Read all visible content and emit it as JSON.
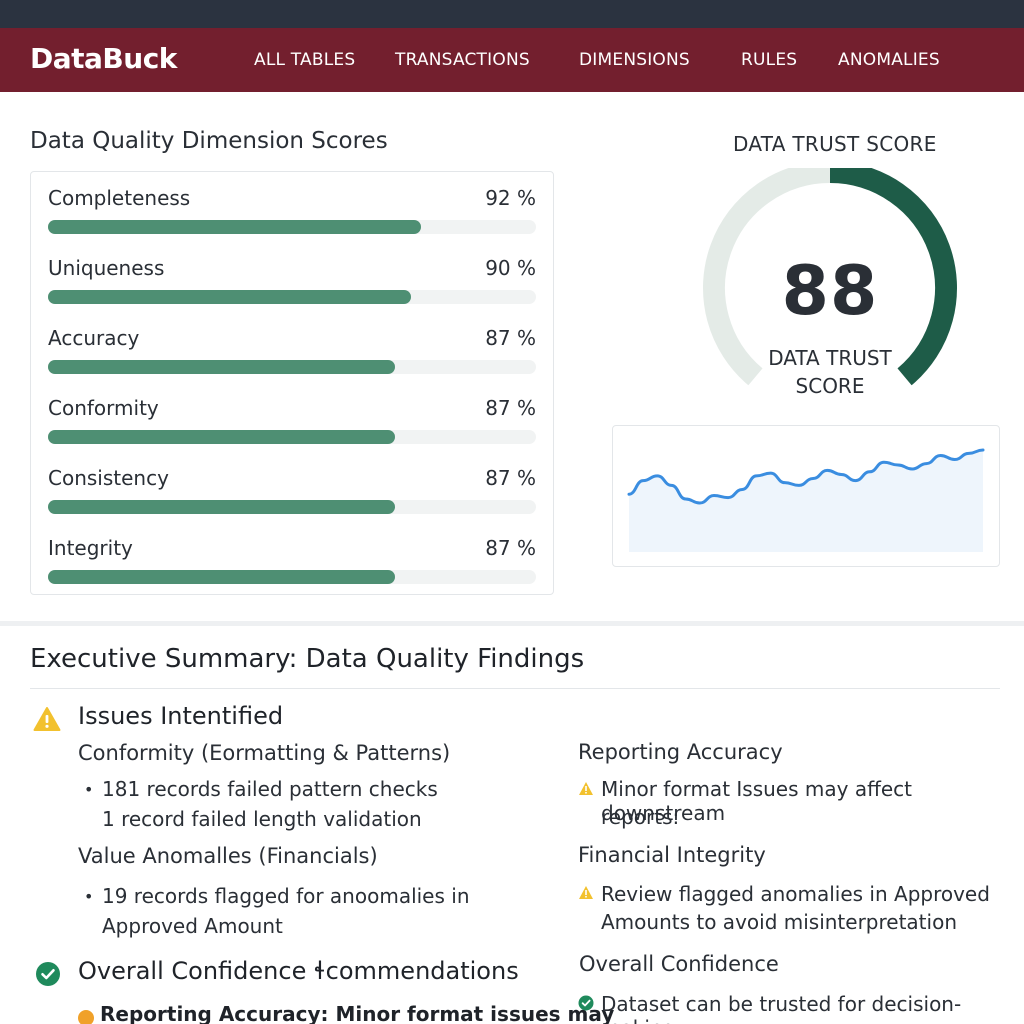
{
  "app": {
    "brand": "DataBuck"
  },
  "nav": {
    "items": [
      "ALL TABLES",
      "TRANSACTIONS",
      "DIMENSIONS",
      "RULES",
      "ANOMALIES"
    ]
  },
  "dimension_scores": {
    "title": "Data Quality Dimension Scores",
    "items": [
      {
        "label": "Completeness",
        "value_text": "92 %",
        "value": 0.92
      },
      {
        "label": "Uniqueness",
        "value_text": "90 %",
        "value": 0.9
      },
      {
        "label": "Accuracy",
        "value_text": "87 %",
        "value": 0.87
      },
      {
        "label": "Conformity",
        "value_text": "87 %",
        "value": 0.87
      },
      {
        "label": "Consistency",
        "value_text": "87 %",
        "value": 0.87
      },
      {
        "label": "Integrity",
        "value_text": "87 %",
        "value": 0.87
      }
    ]
  },
  "trust_score": {
    "title": "DATA TRUST SCORE",
    "value": "88",
    "label_line1": "DATA TRUST",
    "label_line2": "SCORE",
    "fraction": 0.88
  },
  "trend": {
    "series": [
      0.35,
      0.55,
      0.62,
      0.48,
      0.28,
      0.22,
      0.33,
      0.3,
      0.42,
      0.62,
      0.66,
      0.52,
      0.48,
      0.58,
      0.7,
      0.64,
      0.55,
      0.68,
      0.82,
      0.78,
      0.72,
      0.8,
      0.92,
      0.86,
      0.95,
      1.0
    ]
  },
  "executive_summary": {
    "title": "Executive Summary: Data Quality Findings",
    "issues_heading": "Issues Intentified",
    "conformity_heading": "Conformity (Eormatting & Patterns)",
    "conformity_line1": "181 records failed pattern checks",
    "conformity_line2": "1 record failed length validation",
    "anomalies_heading": "Value Anomalles (Financials)",
    "anomalies_line1": "19 records flagged for anoomalies in",
    "anomalies_line2": "Approved Amount",
    "confidence_heading": "Overall Confidence ɬcommendations",
    "cut_line": "Reporting Accuracy: Minor format issues may",
    "right": {
      "reporting_heading": "Reporting Accuracy",
      "reporting_line1": "Minor format Issues may affect downstream",
      "reporting_line2": "reports:",
      "financial_heading": "Financial Integrity",
      "financial_line1": "Review flagged anomalies in Approved",
      "financial_line2": "Amounts to avoid misinterpretation",
      "overall_heading": "Overall Confidence",
      "overall_line1": "Dataset can be trusted for decision-making"
    }
  },
  "colors": {
    "brand_bar": "#731f2e",
    "bar_fill": "#4e8f73",
    "gauge_fill": "#1e5c48",
    "gauge_track": "#e4ebe7",
    "trend_line": "#3a8de0",
    "warning": "#f2c12e",
    "success": "#1f8a5c"
  },
  "icons": [
    "warning-icon",
    "check-circle-icon"
  ]
}
